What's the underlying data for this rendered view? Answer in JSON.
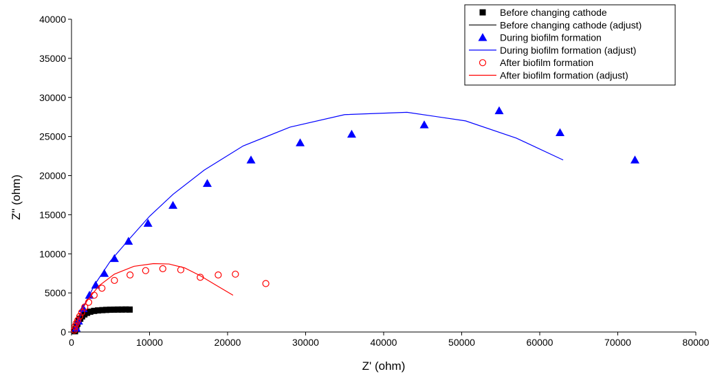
{
  "chart_data": {
    "type": "scatter",
    "title": "",
    "xlabel": "Z' (ohm)",
    "ylabel": "Z'' (ohm)",
    "xlim": [
      0,
      80000
    ],
    "ylim": [
      0,
      40000
    ],
    "x_ticks": [
      0,
      10000,
      20000,
      30000,
      40000,
      50000,
      60000,
      70000,
      80000
    ],
    "y_ticks": [
      0,
      5000,
      10000,
      15000,
      20000,
      25000,
      30000,
      35000,
      40000
    ],
    "grid": false,
    "legend_position": "top-right",
    "series": [
      {
        "name": "Before changing cathode",
        "kind": "scatter",
        "marker": "square",
        "color": "#000000",
        "x": [
          450,
          520,
          620,
          760,
          920,
          1120,
          1350,
          1650,
          2000,
          2400,
          2900,
          3400,
          3950,
          4450,
          4950,
          5450,
          5950,
          6450,
          6950,
          7450
        ],
        "y": [
          100,
          350,
          700,
          1050,
          1400,
          1700,
          2000,
          2250,
          2450,
          2600,
          2700,
          2760,
          2800,
          2830,
          2850,
          2860,
          2870,
          2870,
          2880,
          2870
        ]
      },
      {
        "name": "Before changing cathode (adjust)",
        "kind": "line",
        "color": "#000000",
        "x": [
          400,
          600,
          900,
          1300,
          1800,
          2500,
          3300,
          4200,
          5200,
          6200,
          7500
        ],
        "y": [
          0,
          600,
          1300,
          1900,
          2300,
          2600,
          2750,
          2820,
          2860,
          2880,
          2890
        ]
      },
      {
        "name": "During biofilm formation",
        "kind": "scatter",
        "marker": "triangle",
        "color": "#0000ff",
        "x": [
          600,
          900,
          1500,
          2300,
          3100,
          4200,
          5500,
          7300,
          9800,
          13000,
          17400,
          23000,
          29300,
          35900,
          45200,
          54800,
          62600,
          72200
        ],
        "y": [
          500,
          1400,
          3000,
          4700,
          6000,
          7500,
          9400,
          11600,
          13900,
          16200,
          19000,
          22000,
          24200,
          25300,
          26500,
          28300,
          25500,
          22000
        ]
      },
      {
        "name": "During biofilm formation (adjust)",
        "kind": "line",
        "color": "#0000ff",
        "x": [
          500,
          1500,
          3000,
          5000,
          7500,
          10000,
          13000,
          17000,
          22000,
          28000,
          35000,
          43000,
          50500,
          57000,
          63000
        ],
        "y": [
          0,
          3200,
          6100,
          9100,
          12000,
          14800,
          17600,
          20700,
          23800,
          26200,
          27800,
          28100,
          27000,
          24800,
          22000
        ]
      },
      {
        "name": "After biofilm formation",
        "kind": "scatter",
        "marker": "circle-open",
        "color": "#ff0000",
        "x": [
          350,
          450,
          600,
          800,
          1050,
          1300,
          1700,
          2200,
          2900,
          3900,
          5500,
          7500,
          9500,
          11700,
          14000,
          16500,
          18800,
          21000,
          24900
        ],
        "y": [
          250,
          700,
          1100,
          1500,
          2000,
          2500,
          3200,
          3800,
          4700,
          5600,
          6600,
          7300,
          7850,
          8100,
          7950,
          7000,
          7300,
          7400,
          6200
        ]
      },
      {
        "name": "After biofilm formation (adjust)",
        "kind": "line",
        "color": "#ff0000",
        "x": [
          400,
          1000,
          2000,
          3500,
          5500,
          8000,
          10500,
          12500,
          14500,
          16500,
          18500,
          20700
        ],
        "y": [
          0,
          2200,
          4000,
          5900,
          7400,
          8400,
          8750,
          8700,
          8200,
          7200,
          6000,
          4700
        ]
      }
    ]
  }
}
